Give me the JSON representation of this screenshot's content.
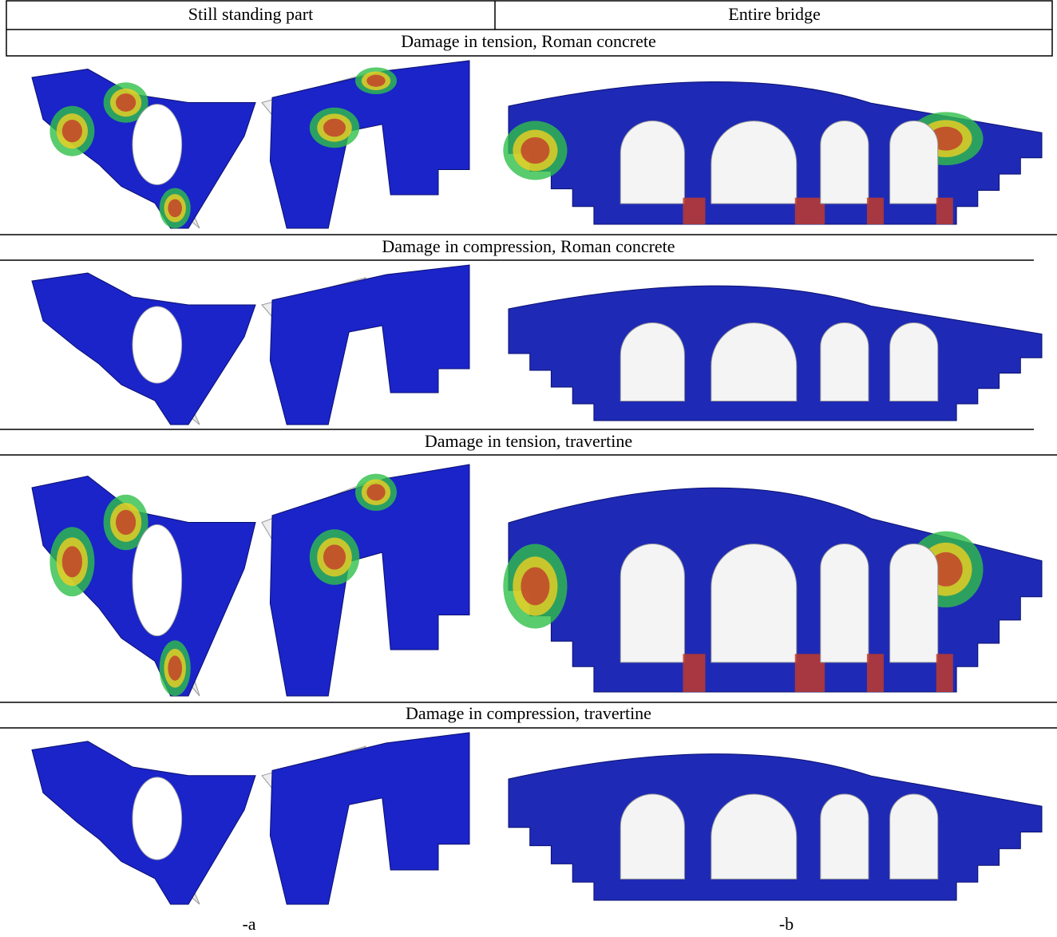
{
  "header": {
    "columns": [
      "Still standing part",
      "Entire bridge"
    ]
  },
  "sections": [
    {
      "title": "Damage in tension, Roman concrete"
    },
    {
      "title": "Damage in compression, Roman concrete"
    },
    {
      "title": "Damage in tension, travertine"
    },
    {
      "title": "Damage in compression, travertine"
    }
  ],
  "captions": [
    "-a",
    "-b"
  ]
}
